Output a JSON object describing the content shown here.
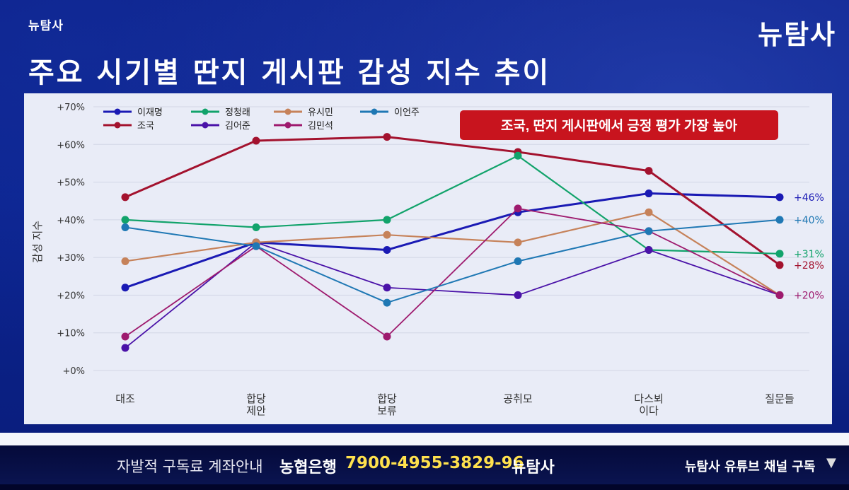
{
  "brand_small": "뉴탐사",
  "brand_large": "뉴탐사",
  "page_title": "주요 시기별 딴지 게시판 감성 지수 추이",
  "callout": "조국, 딴지 게시판에서 긍정 평가 가장 높아",
  "ticker": {
    "donate_label": "자발적 구독료 계좌안내",
    "bank": "농협은행",
    "account": "7900-4955-3829-96",
    "brand_name": "뉴탐사",
    "subscribe": "뉴탐사 유튜브 채널 구독",
    "arrow": "▼"
  },
  "chart_data": {
    "type": "line",
    "title": "",
    "xlabel": "",
    "ylabel": "감성 지수",
    "ylim": [
      0,
      70
    ],
    "ytick_values": [
      0,
      10,
      20,
      30,
      40,
      50,
      60,
      70
    ],
    "ytick_labels": [
      "+0%",
      "+10%",
      "+20%",
      "+30%",
      "+40%",
      "+50%",
      "+60%",
      "+70%"
    ],
    "grid": true,
    "legend_position": "top-left",
    "categories": [
      [
        "대조"
      ],
      [
        "합당",
        "제안"
      ],
      [
        "합당",
        "보류"
      ],
      [
        "공취모"
      ],
      [
        "다스뵈",
        "이다"
      ],
      [
        "질문들"
      ]
    ],
    "series": [
      {
        "name": "이재명",
        "color": "#1a1ab4",
        "width": 3,
        "values": [
          22,
          34,
          32,
          42,
          47,
          46
        ]
      },
      {
        "name": "조국",
        "color": "#a3122e",
        "width": 3,
        "values": [
          46,
          61,
          62,
          58,
          53,
          28
        ]
      },
      {
        "name": "정청래",
        "color": "#12a36b",
        "width": 2.2,
        "values": [
          40,
          38,
          40,
          57,
          32,
          31
        ]
      },
      {
        "name": "김어준",
        "color": "#4a12a8",
        "width": 1.8,
        "values": [
          6,
          34,
          22,
          20,
          32,
          20
        ]
      },
      {
        "name": "유시민",
        "color": "#c6825a",
        "width": 2.2,
        "values": [
          29,
          34,
          36,
          34,
          42,
          20
        ]
      },
      {
        "name": "김민석",
        "color": "#9e1a6e",
        "width": 1.8,
        "values": [
          9,
          33,
          9,
          43,
          37,
          20
        ]
      },
      {
        "name": "이언주",
        "color": "#1f78b4",
        "width": 2,
        "values": [
          38,
          33,
          18,
          29,
          37,
          40
        ]
      }
    ],
    "end_labels": [
      {
        "text": "+46%",
        "value": 46,
        "color": "#1a1ab4"
      },
      {
        "text": "+40%",
        "value": 40,
        "color": "#1f78b4"
      },
      {
        "text": "+31%",
        "value": 31,
        "color": "#12a36b"
      },
      {
        "text": "+28%",
        "value": 28,
        "color": "#a3122e"
      },
      {
        "text": "+20%",
        "value": 20,
        "color": "#9e1a6e"
      }
    ]
  }
}
